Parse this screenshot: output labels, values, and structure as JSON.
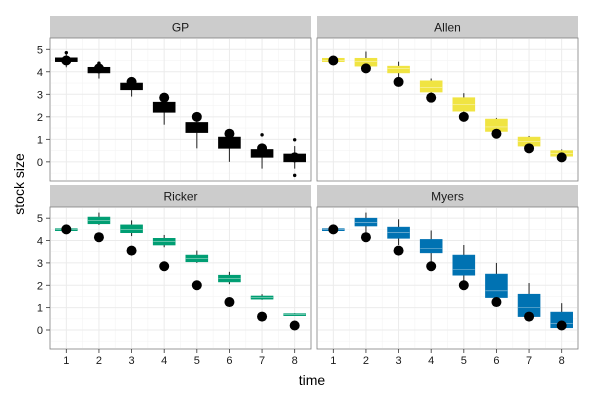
{
  "chart_data": {
    "type": "boxplot",
    "layout": "facet-grid-2x2",
    "xlabel": "time",
    "ylabel": "stock size",
    "x_ticks": [
      1,
      2,
      3,
      4,
      5,
      6,
      7,
      8
    ],
    "y_ticks": [
      0,
      1,
      2,
      3,
      4,
      5
    ],
    "ylim": [
      -0.85,
      5.5
    ],
    "xlim": [
      0.5,
      8.5
    ],
    "observed_points": [
      4.5,
      4.15,
      3.55,
      2.85,
      2.0,
      1.25,
      0.6,
      0.2
    ],
    "panels": [
      {
        "title": "GP",
        "color": "#000000",
        "boxes": [
          {
            "x": 1,
            "lo": 4.2,
            "q1": 4.45,
            "med": 4.52,
            "q3": 4.62,
            "hi": 4.8
          },
          {
            "x": 2,
            "lo": 3.7,
            "q1": 3.95,
            "med": 4.08,
            "q3": 4.2,
            "hi": 4.35
          },
          {
            "x": 3,
            "lo": 2.9,
            "q1": 3.2,
            "med": 3.35,
            "q3": 3.5,
            "hi": 3.7
          },
          {
            "x": 4,
            "lo": 1.65,
            "q1": 2.2,
            "med": 2.45,
            "q3": 2.65,
            "hi": 2.8
          },
          {
            "x": 5,
            "lo": 0.6,
            "q1": 1.3,
            "med": 1.55,
            "q3": 1.75,
            "hi": 2.0
          },
          {
            "x": 6,
            "lo": 0.0,
            "q1": 0.6,
            "med": 0.85,
            "q3": 1.1,
            "hi": 1.4
          },
          {
            "x": 7,
            "lo": -0.3,
            "q1": 0.2,
            "med": 0.4,
            "q3": 0.55,
            "hi": 0.75
          },
          {
            "x": 8,
            "lo": -0.3,
            "q1": 0.0,
            "med": 0.12,
            "q3": 0.35,
            "hi": 0.7
          }
        ],
        "outliers": [
          {
            "x": 1,
            "y": 4.85
          },
          {
            "x": 2,
            "y": 4.38
          },
          {
            "x": 3,
            "y": 3.65
          },
          {
            "x": 7,
            "y": 1.2
          },
          {
            "x": 8,
            "y": 0.98
          },
          {
            "x": 8,
            "y": -0.6
          }
        ]
      },
      {
        "title": "Allen",
        "color": "#F0E442",
        "boxes": [
          {
            "x": 1,
            "lo": 4.4,
            "q1": 4.45,
            "med": 4.5,
            "q3": 4.6,
            "hi": 4.65
          },
          {
            "x": 2,
            "lo": 4.15,
            "q1": 4.25,
            "med": 4.45,
            "q3": 4.6,
            "hi": 4.9
          },
          {
            "x": 3,
            "lo": 3.75,
            "q1": 3.95,
            "med": 4.15,
            "q3": 4.25,
            "hi": 4.45
          },
          {
            "x": 4,
            "lo": 2.9,
            "q1": 3.1,
            "med": 3.3,
            "q3": 3.6,
            "hi": 3.7
          },
          {
            "x": 5,
            "lo": 2.2,
            "q1": 2.25,
            "med": 2.55,
            "q3": 2.85,
            "hi": 3.05
          },
          {
            "x": 6,
            "lo": 1.3,
            "q1": 1.35,
            "med": 1.55,
            "q3": 1.9,
            "hi": 1.95
          },
          {
            "x": 7,
            "lo": 0.6,
            "q1": 0.7,
            "med": 0.9,
            "q3": 1.1,
            "hi": 1.15
          },
          {
            "x": 8,
            "lo": 0.15,
            "q1": 0.25,
            "med": 0.38,
            "q3": 0.5,
            "hi": 0.55
          }
        ],
        "outliers": []
      },
      {
        "title": "Ricker",
        "color": "#009E73",
        "boxes": [
          {
            "x": 1,
            "lo": 4.45,
            "q1": 4.47,
            "med": 4.5,
            "q3": 4.53,
            "hi": 4.55
          },
          {
            "x": 2,
            "lo": 4.7,
            "q1": 4.75,
            "med": 4.9,
            "q3": 5.05,
            "hi": 5.25
          },
          {
            "x": 3,
            "lo": 4.2,
            "q1": 4.35,
            "med": 4.5,
            "q3": 4.7,
            "hi": 4.9
          },
          {
            "x": 4,
            "lo": 3.7,
            "q1": 3.8,
            "med": 3.95,
            "q3": 4.1,
            "hi": 4.25
          },
          {
            "x": 5,
            "lo": 3.0,
            "q1": 3.05,
            "med": 3.2,
            "q3": 3.35,
            "hi": 3.55
          },
          {
            "x": 6,
            "lo": 2.05,
            "q1": 2.15,
            "med": 2.3,
            "q3": 2.45,
            "hi": 2.6
          },
          {
            "x": 7,
            "lo": 1.35,
            "q1": 1.38,
            "med": 1.45,
            "q3": 1.52,
            "hi": 1.6
          },
          {
            "x": 8,
            "lo": 0.65,
            "q1": 0.67,
            "med": 0.7,
            "q3": 0.73,
            "hi": 0.75
          }
        ],
        "outliers": []
      },
      {
        "title": "Myers",
        "color": "#0072B2",
        "boxes": [
          {
            "x": 1,
            "lo": 4.45,
            "q1": 4.47,
            "med": 4.5,
            "q3": 4.53,
            "hi": 4.55
          },
          {
            "x": 2,
            "lo": 4.35,
            "q1": 4.65,
            "med": 4.8,
            "q3": 5.0,
            "hi": 5.25
          },
          {
            "x": 3,
            "lo": 3.8,
            "q1": 4.1,
            "med": 4.35,
            "q3": 4.6,
            "hi": 4.95
          },
          {
            "x": 4,
            "lo": 3.05,
            "q1": 3.45,
            "med": 3.65,
            "q3": 4.05,
            "hi": 4.45
          },
          {
            "x": 5,
            "lo": 2.2,
            "q1": 2.45,
            "med": 2.7,
            "q3": 3.35,
            "hi": 3.8
          },
          {
            "x": 6,
            "lo": 1.3,
            "q1": 1.45,
            "med": 1.75,
            "q3": 2.5,
            "hi": 3.0
          },
          {
            "x": 7,
            "lo": 0.55,
            "q1": 0.6,
            "med": 1.0,
            "q3": 1.6,
            "hi": 2.1
          },
          {
            "x": 8,
            "lo": 0.05,
            "q1": 0.1,
            "med": 0.3,
            "q3": 0.8,
            "hi": 1.2
          }
        ],
        "outliers": []
      }
    ]
  }
}
